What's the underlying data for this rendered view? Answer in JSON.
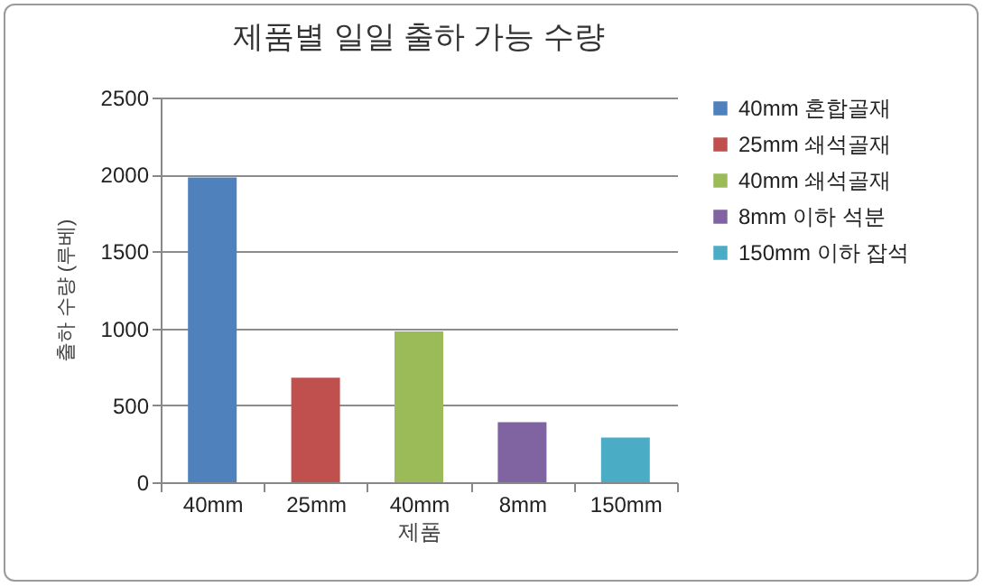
{
  "chart_data": {
    "type": "bar",
    "title": "제품별 일일 출하 가능 수량",
    "xlabel": "제품",
    "ylabel": "출하 수량 (루베)",
    "categories": [
      "40mm",
      "25mm",
      "40mm",
      "8mm",
      "150mm"
    ],
    "series": [
      {
        "name": "40mm 혼합골재",
        "color": "#4f81bd",
        "values": [
          1980,
          null,
          null,
          null,
          null
        ]
      },
      {
        "name": "25mm 쇄석골재",
        "color": "#c0504d",
        "values": [
          null,
          680,
          null,
          null,
          null
        ]
      },
      {
        "name": "40mm 쇄석골재",
        "color": "#9bbb59",
        "values": [
          null,
          null,
          980,
          null,
          null
        ]
      },
      {
        "name": "8mm 이하 석분",
        "color": "#8064a2",
        "values": [
          null,
          null,
          null,
          390,
          null
        ]
      },
      {
        "name": "150mm 이하 잡석",
        "color": "#4bacc6",
        "values": [
          null,
          null,
          null,
          null,
          290
        ]
      }
    ],
    "ylim": [
      0,
      2500
    ],
    "yticks": [
      0,
      500,
      1000,
      1500,
      2000,
      2500
    ],
    "grid": "y",
    "legend": "right"
  }
}
